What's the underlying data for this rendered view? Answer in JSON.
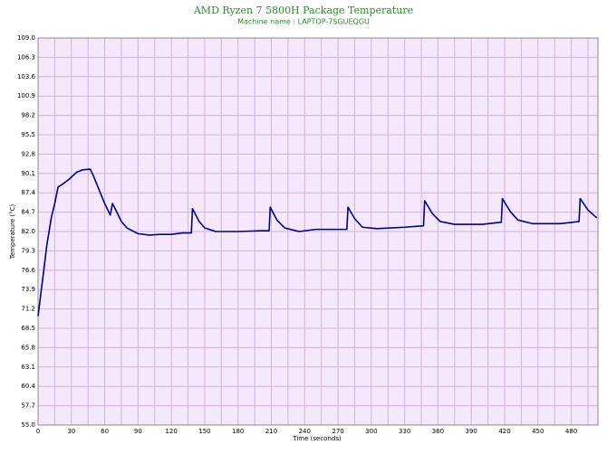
{
  "chart_data": {
    "type": "line",
    "title": "AMD Ryzen 7 5800H Package Temperature",
    "subtitle": "Machine name : LAPTOP-7SGUEQGU",
    "x_label": "Time (seconds)",
    "y_label": "Temperature (°C)",
    "x": [
      0,
      2,
      5,
      8,
      12,
      15,
      18,
      22,
      28,
      35,
      40,
      47,
      50,
      55,
      60,
      65,
      67,
      70,
      75,
      80,
      90,
      100,
      110,
      120,
      130,
      138,
      139,
      145,
      150,
      160,
      180,
      200,
      208,
      209,
      215,
      222,
      235,
      250,
      270,
      278,
      279,
      285,
      292,
      305,
      330,
      347,
      348,
      355,
      362,
      375,
      400,
      417,
      418,
      425,
      432,
      445,
      470,
      487,
      488,
      495,
      503
    ],
    "series": [
      {
        "name": "Temperature",
        "color": "#000080",
        "values": [
          70.2,
          72.7,
          76.4,
          80.2,
          84.0,
          85.9,
          88.2,
          88.6,
          89.3,
          90.3,
          90.6,
          90.7,
          89.7,
          87.8,
          85.9,
          84.3,
          85.9,
          85.0,
          83.4,
          82.5,
          81.7,
          81.5,
          81.6,
          81.6,
          81.8,
          81.8,
          85.2,
          83.4,
          82.5,
          82.0,
          82.0,
          82.1,
          82.1,
          85.4,
          83.6,
          82.5,
          82.0,
          82.3,
          82.3,
          82.3,
          85.4,
          83.8,
          82.6,
          82.4,
          82.6,
          82.8,
          86.3,
          84.5,
          83.4,
          83.0,
          83.0,
          83.3,
          86.6,
          84.8,
          83.6,
          83.1,
          83.1,
          83.4,
          86.6,
          85.0,
          83.9
        ]
      }
    ],
    "xlim": [
      0,
      504
    ],
    "xticks": [
      0,
      30,
      60,
      90,
      120,
      150,
      180,
      210,
      240,
      270,
      300,
      330,
      360,
      390,
      420,
      450,
      480
    ],
    "x_minor_ticks": [
      15,
      45,
      75,
      105,
      135,
      165,
      195,
      225,
      255,
      285,
      315,
      345,
      375,
      405,
      435,
      465,
      495
    ],
    "ylim": [
      55,
      109
    ],
    "yticks": [
      {
        "value": 55,
        "label": "55.0"
      },
      57.7,
      60.4,
      63.1,
      65.8,
      68.5,
      71.2,
      73.9,
      76.6,
      79.3,
      {
        "value": 82,
        "label": "82.0"
      },
      84.7,
      87.4,
      90.1,
      92.8,
      95.5,
      98.2,
      100.9,
      103.6,
      106.3,
      {
        "value": 109,
        "label": "109.0"
      }
    ],
    "grid": true
  }
}
